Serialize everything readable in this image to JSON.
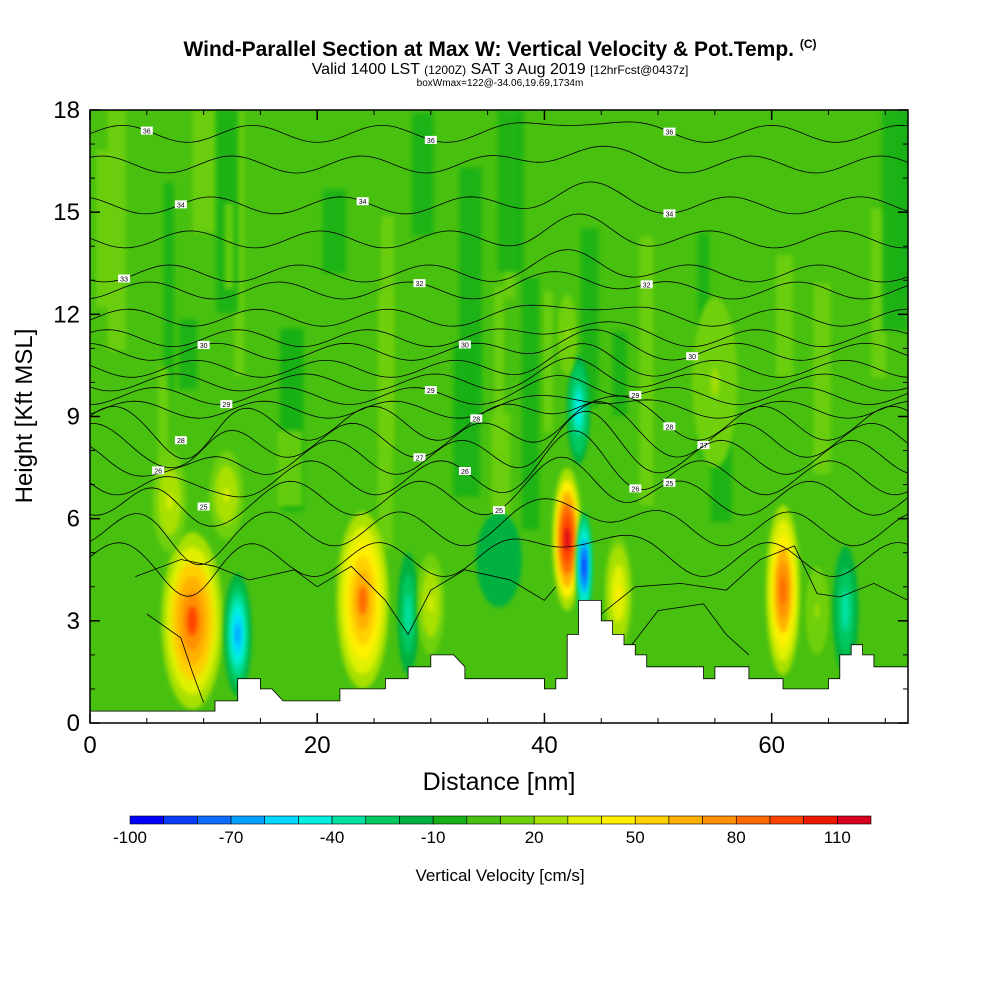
{
  "header": {
    "title": "Wind-Parallel Section at Max W: Vertical Velocity & Pot.Temp.",
    "copyright": "(C)",
    "valid_label": "Valid 1400 LST",
    "utc": "(1200Z)",
    "date": "SAT 3 Aug 2019",
    "fcst": "[12hrFcst@0437z]",
    "box": "boxWmax=122@-34.06,19.69,1734m"
  },
  "chart_data": {
    "type": "heatmap",
    "title": "Wind-Parallel Section at Max W: Vertical Velocity & Pot.Temp.",
    "xlabel": "Distance [nm]",
    "ylabel": "Height [Kft MSL]",
    "xlim": [
      0,
      72
    ],
    "ylim": [
      0,
      18
    ],
    "xticks": [
      "0",
      "20",
      "40",
      "60"
    ],
    "yticks": [
      "0",
      "3",
      "6",
      "9",
      "12",
      "15",
      "18"
    ],
    "colorbar": {
      "label": "Vertical Velocity [cm/s]",
      "tick_labels": [
        "-100",
        "-70",
        "-40",
        "-10",
        "20",
        "50",
        "80",
        "110"
      ],
      "levels": [
        -100,
        -90,
        -80,
        -70,
        -60,
        -50,
        -40,
        -30,
        -20,
        -10,
        0,
        10,
        20,
        30,
        40,
        50,
        60,
        70,
        80,
        90,
        100,
        110,
        120
      ],
      "colors": [
        "#0000ff",
        "#0a3cff",
        "#0f6cff",
        "#00a0ff",
        "#00d8ff",
        "#00f0e0",
        "#00e0a0",
        "#00c860",
        "#00b040",
        "#18b018",
        "#48c010",
        "#70d008",
        "#a8e000",
        "#e0f000",
        "#fff000",
        "#ffd000",
        "#ffb000",
        "#ff9000",
        "#ff6a00",
        "#ff4400",
        "#ee1a00",
        "#d80020"
      ]
    },
    "terrain": {
      "x": [
        0,
        9,
        11,
        11,
        12,
        13,
        13,
        14,
        15,
        15,
        16,
        16,
        17,
        21,
        22,
        22,
        24,
        26,
        26,
        27,
        28,
        28,
        29,
        30,
        30,
        32,
        32,
        33,
        33,
        40,
        40,
        41,
        41,
        42,
        42,
        43,
        43,
        45,
        45,
        46,
        46,
        47,
        47,
        48,
        48,
        49,
        49,
        54,
        54,
        55,
        55,
        58,
        58,
        61,
        61,
        65,
        65,
        66,
        66,
        67,
        67,
        68,
        68,
        69,
        69,
        70,
        70,
        72
      ],
      "y": [
        0.35,
        0.35,
        0.35,
        0.65,
        0.65,
        0.65,
        1.3,
        1.3,
        1.3,
        1.0,
        1.0,
        1.0,
        0.65,
        0.65,
        0.65,
        1.0,
        1.0,
        1.0,
        1.3,
        1.3,
        1.3,
        1.65,
        1.65,
        1.65,
        2.0,
        2.0,
        2.0,
        1.65,
        1.3,
        1.3,
        1.0,
        1.0,
        1.3,
        1.3,
        2.6,
        2.6,
        3.6,
        3.6,
        3.0,
        3.0,
        2.6,
        2.6,
        2.3,
        2.3,
        2.0,
        2.0,
        1.65,
        1.65,
        1.3,
        1.3,
        1.65,
        1.65,
        1.3,
        1.3,
        1.0,
        1.0,
        1.3,
        1.3,
        2.0,
        2.0,
        2.3,
        2.3,
        2.0,
        2.0,
        1.65,
        1.65,
        1.65,
        1.65
      ]
    },
    "vertical_velocity_cells": [
      {
        "x": 9,
        "y": 3,
        "rx": 2.7,
        "ry": 2.6,
        "value": 90
      },
      {
        "x": 13,
        "y": 2.6,
        "rx": 1.2,
        "ry": 1.8,
        "value": -70
      },
      {
        "x": 7,
        "y": 6.5,
        "rx": 1.5,
        "ry": 1.5,
        "value": 30
      },
      {
        "x": 12,
        "y": 6.7,
        "rx": 1.5,
        "ry": 1.3,
        "value": 30
      },
      {
        "x": 24,
        "y": 3.6,
        "rx": 2.3,
        "ry": 2.6,
        "value": 80
      },
      {
        "x": 28,
        "y": 3.2,
        "rx": 0.9,
        "ry": 1.8,
        "value": -40
      },
      {
        "x": 30,
        "y": 3.5,
        "rx": 1.2,
        "ry": 1.5,
        "value": 30
      },
      {
        "x": 42,
        "y": 5.4,
        "rx": 1.3,
        "ry": 2.1,
        "value": 115
      },
      {
        "x": 43.5,
        "y": 4.6,
        "rx": 0.7,
        "ry": 1.6,
        "value": -90
      },
      {
        "x": 43,
        "y": 9.2,
        "rx": 1.0,
        "ry": 1.6,
        "value": -50
      },
      {
        "x": 42,
        "y": 11.4,
        "rx": 0.8,
        "ry": 1.2,
        "value": 20
      },
      {
        "x": 46.5,
        "y": 3.8,
        "rx": 1.2,
        "ry": 1.7,
        "value": 40
      },
      {
        "x": 61,
        "y": 3.9,
        "rx": 1.5,
        "ry": 2.5,
        "value": 85
      },
      {
        "x": 66.5,
        "y": 3.3,
        "rx": 1.1,
        "ry": 1.9,
        "value": -40
      },
      {
        "x": 64,
        "y": 3.3,
        "rx": 1.0,
        "ry": 1.3,
        "value": 20
      },
      {
        "x": 36,
        "y": 4.8,
        "rx": 2.0,
        "ry": 1.4,
        "value": -20
      },
      {
        "x": 55,
        "y": 10,
        "rx": 2.0,
        "ry": 2.5,
        "value": 20
      }
    ],
    "pot_temp_contours": [
      {
        "y0": 17.3,
        "label": "36",
        "lx": [
          5,
          30,
          51
        ]
      },
      {
        "y0": 16.4
      },
      {
        "y0": 15.2,
        "label": "34",
        "lx": [
          8,
          24,
          51
        ]
      },
      {
        "y0": 14.2
      },
      {
        "y0": 13.2,
        "label": "33",
        "lx": [
          3
        ]
      },
      {
        "y0": 12.7,
        "label": "32",
        "lx": [
          29,
          49
        ]
      },
      {
        "y0": 11.9
      },
      {
        "y0": 11.3
      },
      {
        "y0": 10.9,
        "label": "30",
        "lx": [
          10,
          33,
          53
        ]
      },
      {
        "y0": 10.4
      },
      {
        "y0": 10.0
      },
      {
        "y0": 9.6,
        "label": "29",
        "lx": [
          12,
          30,
          48
        ]
      },
      {
        "y0": 9.2
      },
      {
        "y0": 8.8,
        "label": "28",
        "lx": [
          8,
          34,
          51
        ]
      },
      {
        "y0": 8.3,
        "label": "27",
        "lx": [
          29,
          54
        ]
      },
      {
        "y0": 7.8
      },
      {
        "y0": 7.2,
        "label": "26",
        "lx": [
          6,
          33,
          48
        ]
      },
      {
        "y0": 6.6,
        "label": "25",
        "lx": [
          10,
          36,
          51
        ]
      },
      {
        "y0": 5.7
      },
      {
        "y0": 4.8
      }
    ]
  }
}
